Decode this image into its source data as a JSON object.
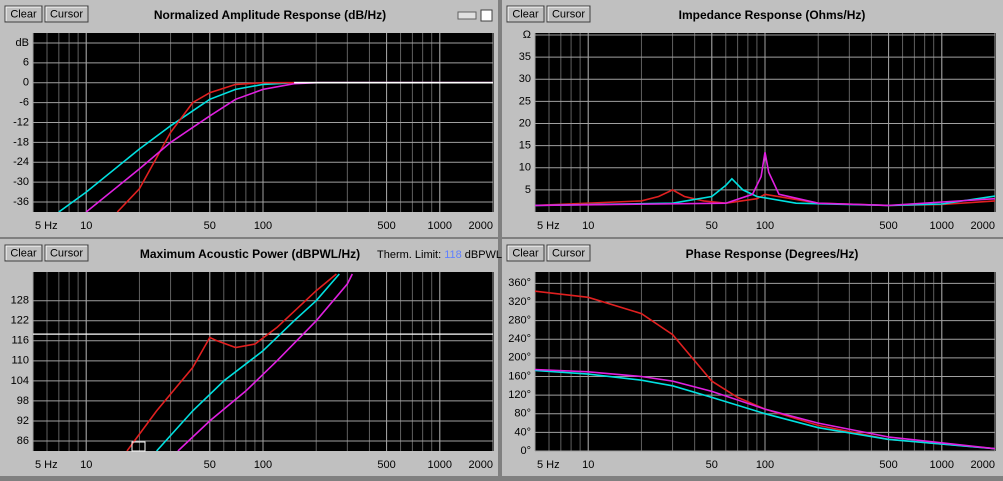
{
  "chart_data": [
    {
      "type": "line",
      "title": "Normalized Amplitude Response (dB/Hz)",
      "buttons": [
        "Clear",
        "Cursor"
      ],
      "log_x": true,
      "grid": true,
      "xlim": [
        5,
        2000
      ],
      "xticks": [
        {
          "value": 5,
          "label": "5 Hz"
        },
        10,
        50,
        100,
        500,
        1000,
        2000
      ],
      "ylim": [
        -39,
        14.4
      ],
      "yticks": [
        {
          "value": 12,
          "label": "dB"
        },
        6,
        0,
        -6,
        -12,
        -18,
        -24,
        -30,
        -36
      ],
      "series": [
        {
          "color": "#00e0e0",
          "x": [
            7,
            10,
            20,
            30,
            50,
            70,
            100,
            150,
            2000
          ],
          "values": [
            -39,
            -33,
            -20,
            -13,
            -5,
            -2,
            -0.5,
            0,
            0
          ]
        },
        {
          "color": "#e02020",
          "x": [
            15,
            20,
            30,
            40,
            50,
            70,
            100,
            2000
          ],
          "values": [
            -39,
            -32,
            -15,
            -6,
            -3,
            -0.5,
            0,
            0
          ]
        },
        {
          "color": "#e020e0",
          "x": [
            10,
            20,
            30,
            50,
            70,
            100,
            150,
            200,
            2000
          ],
          "values": [
            -39,
            -26,
            -18,
            -10,
            -5,
            -2,
            -0.3,
            0,
            0
          ]
        },
        {
          "color": "#ffffff",
          "x": [
            150,
            2000
          ],
          "values": [
            0,
            0
          ]
        }
      ]
    },
    {
      "type": "line",
      "title": "Impedance Response (Ohms/Hz)",
      "buttons": [
        "Clear",
        "Cursor"
      ],
      "log_x": true,
      "grid": true,
      "xlim": [
        5,
        2000
      ],
      "xticks": [
        {
          "value": 5,
          "label": "5 Hz"
        },
        10,
        50,
        100,
        500,
        1000,
        2000
      ],
      "ylim": [
        0,
        40
      ],
      "yticks": [
        {
          "value": 40,
          "label": "Ω"
        },
        35,
        30,
        25,
        20,
        15,
        10,
        5
      ],
      "series": [
        {
          "color": "#e02020",
          "x": [
            5,
            20,
            25,
            30,
            35,
            45,
            60,
            90,
            100,
            200,
            500,
            1000,
            2000
          ],
          "values": [
            1.5,
            2.5,
            3.5,
            5,
            3.5,
            2.5,
            2,
            3,
            4,
            2,
            1.5,
            1.7,
            2.5
          ]
        },
        {
          "color": "#00e0e0",
          "x": [
            5,
            30,
            50,
            60,
            65,
            75,
            90,
            150,
            500,
            1000,
            2000
          ],
          "values": [
            1.5,
            2,
            3.5,
            6,
            7.5,
            5,
            3.5,
            2,
            1.5,
            1.8,
            3.6
          ]
        },
        {
          "color": "#e020e0",
          "x": [
            5,
            60,
            85,
            95,
            100,
            105,
            120,
            200,
            500,
            2000
          ],
          "values": [
            1.5,
            2,
            4,
            8,
            13.5,
            9,
            4,
            2,
            1.5,
            3
          ]
        }
      ]
    },
    {
      "type": "line",
      "title": "Maximum Acoustic Power (dBPWL/Hz)",
      "buttons": [
        "Clear",
        "Cursor"
      ],
      "log_x": true,
      "grid": true,
      "therm_limit_label": "Therm. Limit:",
      "therm_limit": 118,
      "therm_limit_unit": "dBPWL",
      "xlim": [
        5,
        2000
      ],
      "xticks": [
        {
          "value": 5,
          "label": "5 Hz"
        },
        10,
        50,
        100,
        500,
        1000,
        2000
      ],
      "ylim": [
        83,
        136
      ],
      "yticks": [
        128,
        122,
        116,
        110,
        104,
        98,
        92,
        86
      ],
      "series": [
        {
          "color": "#e02020",
          "x": [
            17,
            25,
            40,
            50,
            55,
            70,
            90,
            120,
            200,
            260
          ],
          "values": [
            83,
            95,
            108,
            117,
            116,
            114,
            115,
            120,
            131,
            136
          ]
        },
        {
          "color": "#00e0e0",
          "x": [
            25,
            40,
            60,
            100,
            150,
            200,
            270
          ],
          "values": [
            83,
            95,
            104,
            113,
            122,
            128,
            136
          ]
        },
        {
          "color": "#e020e0",
          "x": [
            33,
            50,
            80,
            120,
            200,
            300,
            320
          ],
          "values": [
            83,
            92,
            101,
            110,
            122,
            133,
            136
          ]
        }
      ]
    },
    {
      "type": "line",
      "title": "Phase Response (Degrees/Hz)",
      "buttons": [
        "Clear",
        "Cursor"
      ],
      "log_x": true,
      "grid": true,
      "xlim": [
        5,
        2000
      ],
      "xticks": [
        {
          "value": 5,
          "label": "5 Hz"
        },
        10,
        50,
        100,
        500,
        1000,
        2000
      ],
      "ylim": [
        0,
        380
      ],
      "yticks": [
        {
          "value": 360,
          "label": "360°"
        },
        {
          "value": 320,
          "label": "320°"
        },
        {
          "value": 280,
          "label": "280°"
        },
        {
          "value": 240,
          "label": "240°"
        },
        {
          "value": 200,
          "label": "200°"
        },
        {
          "value": 160,
          "label": "160°"
        },
        {
          "value": 120,
          "label": "120°"
        },
        {
          "value": 80,
          "label": "80°"
        },
        {
          "value": 40,
          "label": "40°"
        },
        {
          "value": 0,
          "label": "0°"
        }
      ],
      "series": [
        {
          "color": "#e02020",
          "x": [
            5,
            10,
            20,
            30,
            50,
            70,
            100,
            200,
            500,
            1000,
            2000
          ],
          "values": [
            343,
            330,
            295,
            250,
            150,
            115,
            90,
            55,
            25,
            15,
            5
          ]
        },
        {
          "color": "#00e0e0",
          "x": [
            5,
            10,
            20,
            30,
            50,
            100,
            200,
            500,
            2000
          ],
          "values": [
            173,
            165,
            152,
            140,
            115,
            80,
            50,
            25,
            5
          ]
        },
        {
          "color": "#e020e0",
          "x": [
            5,
            10,
            20,
            30,
            50,
            100,
            200,
            500,
            2000
          ],
          "values": [
            175,
            170,
            160,
            150,
            128,
            90,
            60,
            30,
            5
          ]
        }
      ]
    }
  ]
}
